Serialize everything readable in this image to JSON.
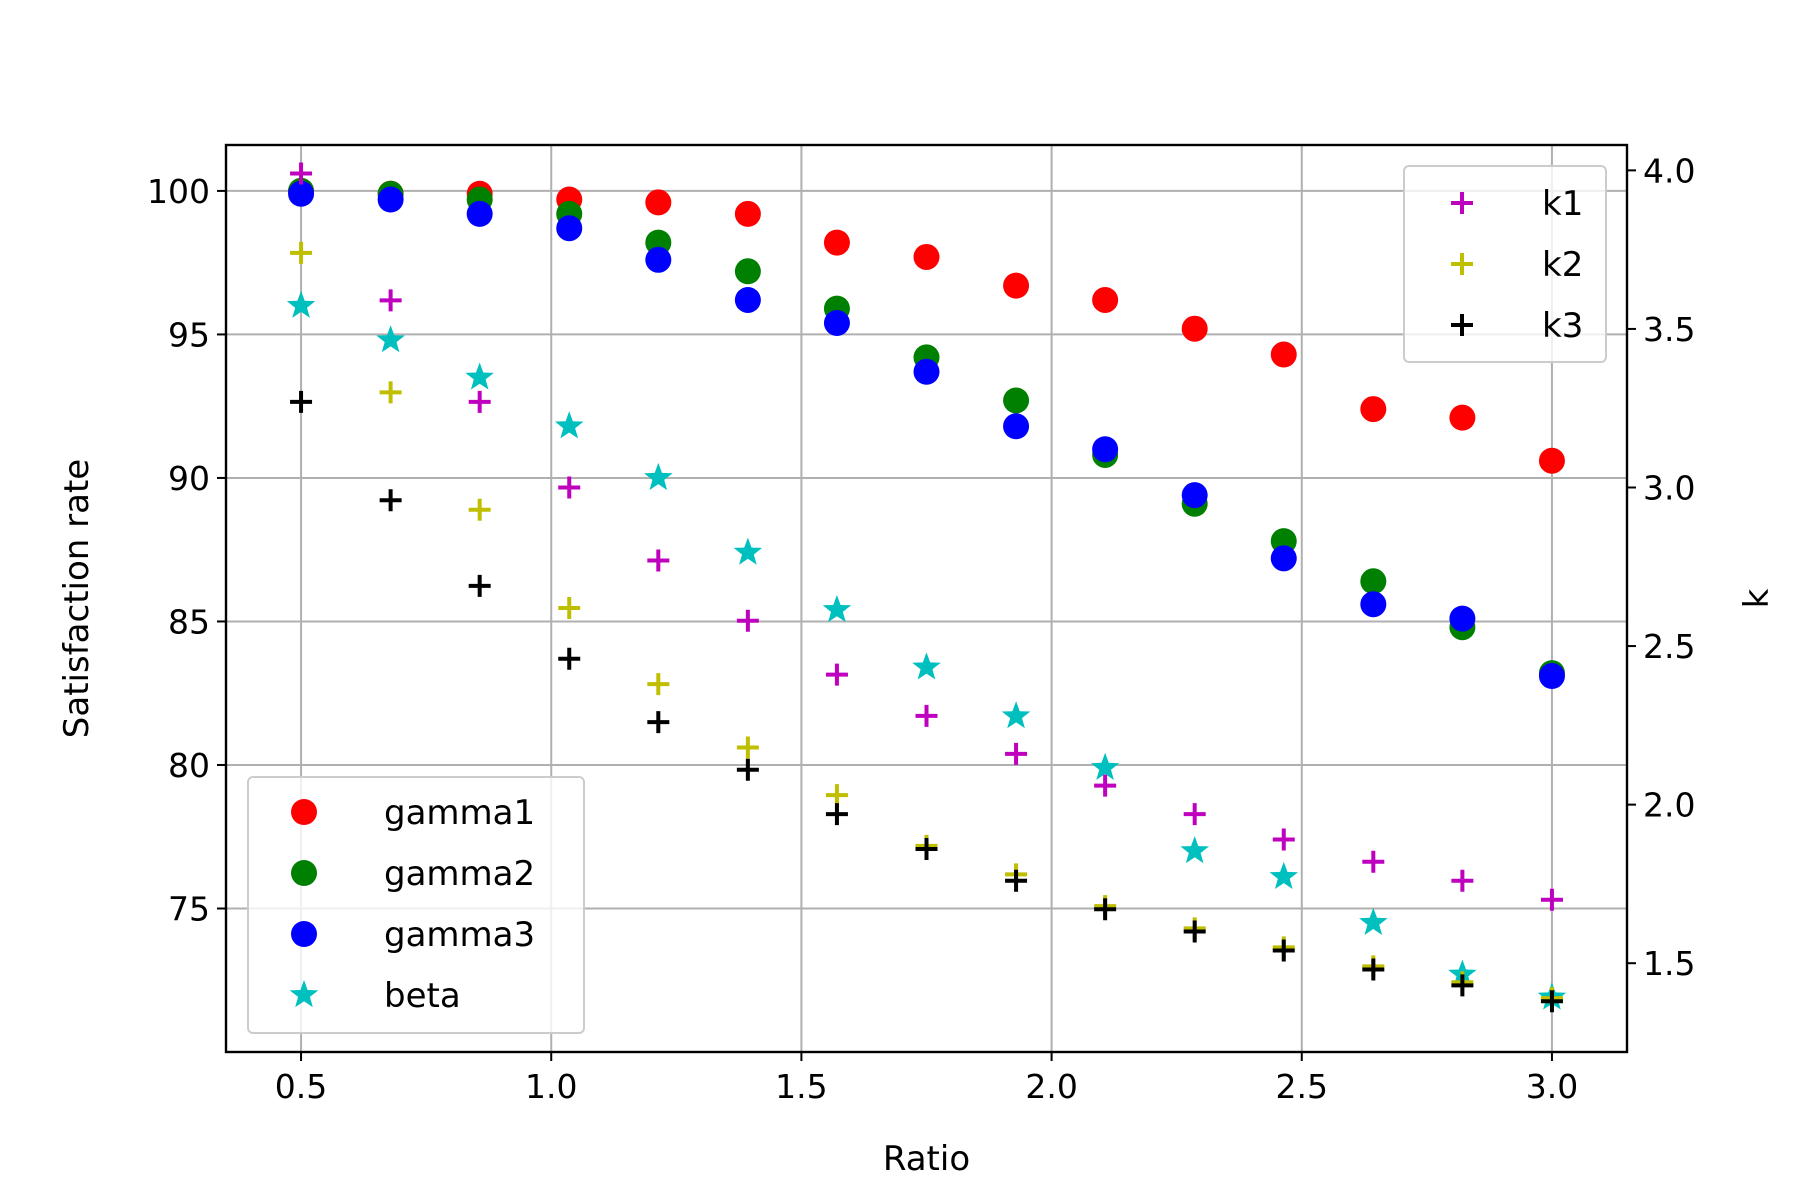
{
  "chart_data": {
    "type": "scatter",
    "xlabel": "Ratio",
    "ylabel": "Satisfaction rate",
    "y2label": "k",
    "xlim": [
      0.35,
      3.15
    ],
    "ylim": [
      70.0,
      101.6
    ],
    "y2lim": [
      1.22,
      4.08
    ],
    "xticks": [
      "0.5",
      "1.0",
      "1.5",
      "2.0",
      "2.5",
      "3.0"
    ],
    "yticks": [
      "75",
      "80",
      "85",
      "90",
      "95",
      "100"
    ],
    "y2ticks": [
      "1.5",
      "2.0",
      "2.5",
      "3.0",
      "3.5",
      "4.0"
    ],
    "grid": true,
    "x": [
      0.5,
      0.679,
      0.857,
      1.036,
      1.214,
      1.393,
      1.571,
      1.75,
      1.929,
      2.107,
      2.286,
      2.464,
      2.643,
      2.821,
      3.0
    ],
    "series": [
      {
        "name": "gamma1",
        "axis": "left",
        "marker": "circle",
        "color": "#ff0000",
        "values": [
          100.0,
          99.9,
          99.9,
          99.7,
          99.6,
          99.2,
          98.2,
          97.7,
          96.7,
          96.2,
          95.2,
          94.3,
          92.4,
          92.1,
          90.6
        ]
      },
      {
        "name": "gamma2",
        "axis": "left",
        "marker": "circle",
        "color": "#008000",
        "values": [
          100.0,
          99.9,
          99.7,
          99.2,
          98.2,
          97.2,
          95.9,
          94.2,
          92.7,
          90.8,
          89.1,
          87.8,
          86.4,
          84.8,
          83.2
        ]
      },
      {
        "name": "gamma3",
        "axis": "left",
        "marker": "circle",
        "color": "#0000ff",
        "values": [
          99.9,
          99.7,
          99.2,
          98.7,
          97.6,
          96.2,
          95.4,
          93.7,
          91.8,
          91.0,
          89.4,
          87.2,
          85.6,
          85.1,
          83.1
        ]
      },
      {
        "name": "beta",
        "axis": "left",
        "marker": "star",
        "color": "#00bfbf",
        "values": [
          96.0,
          94.8,
          93.5,
          91.8,
          90.0,
          87.4,
          85.4,
          83.4,
          81.7,
          79.9,
          77.0,
          76.1,
          74.5,
          72.7,
          71.9
        ]
      },
      {
        "name": "k1",
        "axis": "right",
        "marker": "plus",
        "color": "#bf00bf",
        "values": [
          3.99,
          3.59,
          3.27,
          3.0,
          2.77,
          2.58,
          2.41,
          2.28,
          2.16,
          2.06,
          1.97,
          1.89,
          1.82,
          1.76,
          1.7
        ]
      },
      {
        "name": "k2",
        "axis": "right",
        "marker": "plus",
        "color": "#bfbf00",
        "values": [
          3.74,
          3.3,
          2.93,
          2.62,
          2.38,
          2.18,
          2.03,
          1.87,
          1.78,
          1.68,
          1.61,
          1.55,
          1.49,
          1.44,
          1.39
        ]
      },
      {
        "name": "k3",
        "axis": "right",
        "marker": "plus",
        "color": "#000000",
        "values": [
          3.27,
          2.96,
          2.69,
          2.46,
          2.26,
          2.11,
          1.97,
          1.86,
          1.76,
          1.67,
          1.6,
          1.54,
          1.48,
          1.43,
          1.38
        ]
      }
    ],
    "legends": {
      "left": {
        "placement": "lower-left",
        "entries": [
          "gamma1",
          "gamma2",
          "gamma3",
          "beta"
        ]
      },
      "right": {
        "placement": "upper-right",
        "entries": [
          "k1",
          "k2",
          "k3"
        ]
      }
    }
  }
}
